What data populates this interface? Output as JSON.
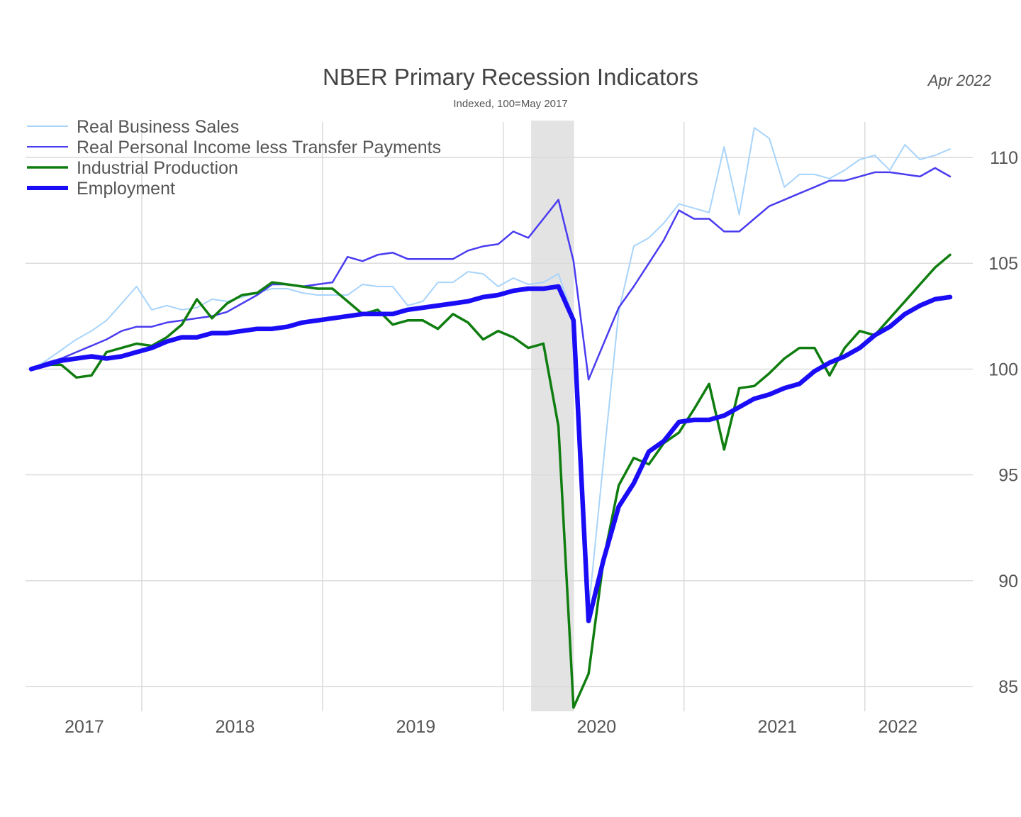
{
  "chart_data": {
    "type": "line",
    "title": "NBER Primary Recession Indicators",
    "subtitle": "Indexed, 100=May 2017",
    "date_note": "Apr 2022",
    "ylim": [
      84,
      112
    ],
    "y_ticks": [
      85,
      90,
      95,
      100,
      105,
      110
    ],
    "y_tick_labels": [
      "85",
      "90",
      "95",
      "100",
      "105",
      "110"
    ],
    "x_tick_labels": [
      "2017",
      "2018",
      "2019",
      "2020",
      "2021",
      "2022"
    ],
    "xlim": [
      "2017-05",
      "2022-04"
    ],
    "x_tick_positions": [
      "2017-09",
      "2018-07",
      "2019-07",
      "2020-07",
      "2021-07",
      "2022-03"
    ],
    "x_grid_years": [
      "2018-01",
      "2019-01",
      "2020-01",
      "2021-01",
      "2022-01"
    ],
    "recession": {
      "start": "2020-02",
      "end": "2020-04"
    },
    "grid": true,
    "legend_position": "top-left",
    "series": [
      {
        "name": "Real Business Sales",
        "color": "#a8d4fb",
        "values": [
          [
            "2017-05",
            100.0
          ],
          [
            "2017-06",
            100.4
          ],
          [
            "2017-07",
            100.9
          ],
          [
            "2017-08",
            101.4
          ],
          [
            "2017-09",
            101.8
          ],
          [
            "2017-10",
            102.3
          ],
          [
            "2017-11",
            103.1
          ],
          [
            "2017-12",
            103.9
          ],
          [
            "2018-01",
            102.8
          ],
          [
            "2018-02",
            103.0
          ],
          [
            "2018-03",
            102.8
          ],
          [
            "2018-04",
            102.9
          ],
          [
            "2018-05",
            103.3
          ],
          [
            "2018-06",
            103.2
          ],
          [
            "2018-07",
            103.4
          ],
          [
            "2018-08",
            103.6
          ],
          [
            "2018-09",
            103.8
          ],
          [
            "2018-10",
            103.8
          ],
          [
            "2018-11",
            103.6
          ],
          [
            "2018-12",
            103.5
          ],
          [
            "2019-01",
            103.5
          ],
          [
            "2019-02",
            103.5
          ],
          [
            "2019-03",
            104.0
          ],
          [
            "2019-04",
            103.9
          ],
          [
            "2019-05",
            103.9
          ],
          [
            "2019-06",
            103.0
          ],
          [
            "2019-07",
            103.2
          ],
          [
            "2019-08",
            104.1
          ],
          [
            "2019-09",
            104.1
          ],
          [
            "2019-10",
            104.6
          ],
          [
            "2019-11",
            104.5
          ],
          [
            "2019-12",
            103.9
          ],
          [
            "2020-01",
            104.3
          ],
          [
            "2020-02",
            104.0
          ],
          [
            "2020-03",
            104.1
          ],
          [
            "2020-04",
            104.5
          ],
          [
            "2020-05",
            102.4
          ],
          [
            "2020-06",
            88.6
          ],
          [
            "2020-07",
            95.7
          ],
          [
            "2020-08",
            102.7
          ],
          [
            "2020-09",
            105.8
          ],
          [
            "2020-10",
            106.2
          ],
          [
            "2020-11",
            106.9
          ],
          [
            "2020-12",
            107.8
          ],
          [
            "2021-01",
            107.6
          ],
          [
            "2021-02",
            107.4
          ],
          [
            "2021-03",
            110.5
          ],
          [
            "2021-04",
            107.3
          ],
          [
            "2021-05",
            111.4
          ],
          [
            "2021-06",
            110.9
          ],
          [
            "2021-07",
            108.6
          ],
          [
            "2021-08",
            109.2
          ],
          [
            "2021-09",
            109.2
          ],
          [
            "2021-10",
            109.0
          ],
          [
            "2021-11",
            109.4
          ],
          [
            "2021-12",
            109.9
          ],
          [
            "2022-01",
            110.1
          ],
          [
            "2022-02",
            109.4
          ],
          [
            "2022-03",
            110.6
          ],
          [
            "2022-04",
            109.9
          ],
          [
            "2022-05",
            110.1
          ],
          [
            "2022-06",
            110.4
          ]
        ]
      },
      {
        "name": "Real Personal Income less Transfer Payments",
        "color": "#4a3cf0",
        "values": [
          [
            "2017-05",
            100.0
          ],
          [
            "2017-06",
            100.3
          ],
          [
            "2017-07",
            100.5
          ],
          [
            "2017-08",
            100.8
          ],
          [
            "2017-09",
            101.1
          ],
          [
            "2017-10",
            101.4
          ],
          [
            "2017-11",
            101.8
          ],
          [
            "2017-12",
            102.0
          ],
          [
            "2018-01",
            102.0
          ],
          [
            "2018-02",
            102.2
          ],
          [
            "2018-03",
            102.3
          ],
          [
            "2018-04",
            102.4
          ],
          [
            "2018-05",
            102.5
          ],
          [
            "2018-06",
            102.7
          ],
          [
            "2018-07",
            103.1
          ],
          [
            "2018-08",
            103.5
          ],
          [
            "2018-09",
            104.0
          ],
          [
            "2018-10",
            104.0
          ],
          [
            "2018-11",
            103.9
          ],
          [
            "2018-12",
            104.0
          ],
          [
            "2019-01",
            104.1
          ],
          [
            "2019-02",
            105.3
          ],
          [
            "2019-03",
            105.1
          ],
          [
            "2019-04",
            105.4
          ],
          [
            "2019-05",
            105.5
          ],
          [
            "2019-06",
            105.2
          ],
          [
            "2019-07",
            105.2
          ],
          [
            "2019-08",
            105.2
          ],
          [
            "2019-09",
            105.2
          ],
          [
            "2019-10",
            105.6
          ],
          [
            "2019-11",
            105.8
          ],
          [
            "2019-12",
            105.9
          ],
          [
            "2020-01",
            106.5
          ],
          [
            "2020-02",
            106.2
          ],
          [
            "2020-03",
            107.1
          ],
          [
            "2020-04",
            108.0
          ],
          [
            "2020-05",
            105.1
          ],
          [
            "2020-06",
            99.5
          ],
          [
            "2020-07",
            101.2
          ],
          [
            "2020-08",
            102.9
          ],
          [
            "2020-09",
            103.9
          ],
          [
            "2020-10",
            105.0
          ],
          [
            "2020-11",
            106.1
          ],
          [
            "2020-12",
            107.5
          ],
          [
            "2021-01",
            107.1
          ],
          [
            "2021-02",
            107.1
          ],
          [
            "2021-03",
            106.5
          ],
          [
            "2021-04",
            106.5
          ],
          [
            "2021-05",
            107.1
          ],
          [
            "2021-06",
            107.7
          ],
          [
            "2021-07",
            108.0
          ],
          [
            "2021-08",
            108.3
          ],
          [
            "2021-09",
            108.6
          ],
          [
            "2021-10",
            108.9
          ],
          [
            "2021-11",
            108.9
          ],
          [
            "2021-12",
            109.1
          ],
          [
            "2022-01",
            109.3
          ],
          [
            "2022-02",
            109.3
          ],
          [
            "2022-03",
            109.2
          ],
          [
            "2022-04",
            109.1
          ],
          [
            "2022-05",
            109.5
          ],
          [
            "2022-06",
            109.1
          ]
        ]
      },
      {
        "name": "Industrial Production",
        "color": "#0f7d0f",
        "values": [
          [
            "2017-05",
            100.0
          ],
          [
            "2017-06",
            100.2
          ],
          [
            "2017-07",
            100.2
          ],
          [
            "2017-08",
            99.6
          ],
          [
            "2017-09",
            99.7
          ],
          [
            "2017-10",
            100.8
          ],
          [
            "2017-11",
            101.0
          ],
          [
            "2017-12",
            101.2
          ],
          [
            "2018-01",
            101.1
          ],
          [
            "2018-02",
            101.5
          ],
          [
            "2018-03",
            102.1
          ],
          [
            "2018-04",
            103.3
          ],
          [
            "2018-05",
            102.4
          ],
          [
            "2018-06",
            103.1
          ],
          [
            "2018-07",
            103.5
          ],
          [
            "2018-08",
            103.6
          ],
          [
            "2018-09",
            104.1
          ],
          [
            "2018-10",
            104.0
          ],
          [
            "2018-11",
            103.9
          ],
          [
            "2018-12",
            103.8
          ],
          [
            "2019-01",
            103.8
          ],
          [
            "2019-02",
            103.2
          ],
          [
            "2019-03",
            102.6
          ],
          [
            "2019-04",
            102.8
          ],
          [
            "2019-05",
            102.1
          ],
          [
            "2019-06",
            102.3
          ],
          [
            "2019-07",
            102.3
          ],
          [
            "2019-08",
            101.9
          ],
          [
            "2019-09",
            102.6
          ],
          [
            "2019-10",
            102.2
          ],
          [
            "2019-11",
            101.4
          ],
          [
            "2019-12",
            101.8
          ],
          [
            "2020-01",
            101.5
          ],
          [
            "2020-02",
            101.0
          ],
          [
            "2020-03",
            101.2
          ],
          [
            "2020-04",
            97.3
          ],
          [
            "2020-05",
            84.0
          ],
          [
            "2020-06",
            85.6
          ],
          [
            "2020-07",
            91.0
          ],
          [
            "2020-08",
            94.5
          ],
          [
            "2020-09",
            95.8
          ],
          [
            "2020-10",
            95.5
          ],
          [
            "2020-11",
            96.5
          ],
          [
            "2020-12",
            97.0
          ],
          [
            "2021-01",
            98.1
          ],
          [
            "2021-02",
            99.3
          ],
          [
            "2021-03",
            96.2
          ],
          [
            "2021-04",
            99.1
          ],
          [
            "2021-05",
            99.2
          ],
          [
            "2021-06",
            99.8
          ],
          [
            "2021-07",
            100.5
          ],
          [
            "2021-08",
            101.0
          ],
          [
            "2021-09",
            101.0
          ],
          [
            "2021-10",
            99.7
          ],
          [
            "2021-11",
            101.0
          ],
          [
            "2021-12",
            101.8
          ],
          [
            "2022-01",
            101.6
          ],
          [
            "2022-02",
            102.4
          ],
          [
            "2022-03",
            103.2
          ],
          [
            "2022-04",
            104.0
          ],
          [
            "2022-05",
            104.8
          ],
          [
            "2022-06",
            105.4
          ]
        ]
      },
      {
        "name": "Employment",
        "color": "#1a0df5",
        "values": [
          [
            "2017-05",
            100.0
          ],
          [
            "2017-06",
            100.2
          ],
          [
            "2017-07",
            100.4
          ],
          [
            "2017-08",
            100.5
          ],
          [
            "2017-09",
            100.6
          ],
          [
            "2017-10",
            100.5
          ],
          [
            "2017-11",
            100.6
          ],
          [
            "2017-12",
            100.8
          ],
          [
            "2018-01",
            101.0
          ],
          [
            "2018-02",
            101.3
          ],
          [
            "2018-03",
            101.5
          ],
          [
            "2018-04",
            101.5
          ],
          [
            "2018-05",
            101.7
          ],
          [
            "2018-06",
            101.7
          ],
          [
            "2018-07",
            101.8
          ],
          [
            "2018-08",
            101.9
          ],
          [
            "2018-09",
            101.9
          ],
          [
            "2018-10",
            102.0
          ],
          [
            "2018-11",
            102.2
          ],
          [
            "2018-12",
            102.3
          ],
          [
            "2019-01",
            102.4
          ],
          [
            "2019-02",
            102.5
          ],
          [
            "2019-03",
            102.6
          ],
          [
            "2019-04",
            102.6
          ],
          [
            "2019-05",
            102.6
          ],
          [
            "2019-06",
            102.8
          ],
          [
            "2019-07",
            102.9
          ],
          [
            "2019-08",
            103.0
          ],
          [
            "2019-09",
            103.1
          ],
          [
            "2019-10",
            103.2
          ],
          [
            "2019-11",
            103.4
          ],
          [
            "2019-12",
            103.5
          ],
          [
            "2020-01",
            103.7
          ],
          [
            "2020-02",
            103.8
          ],
          [
            "2020-03",
            103.8
          ],
          [
            "2020-04",
            103.9
          ],
          [
            "2020-05",
            102.3
          ],
          [
            "2020-06",
            88.1
          ],
          [
            "2020-07",
            91.0
          ],
          [
            "2020-08",
            93.5
          ],
          [
            "2020-09",
            94.6
          ],
          [
            "2020-10",
            96.1
          ],
          [
            "2020-11",
            96.6
          ],
          [
            "2020-12",
            97.5
          ],
          [
            "2021-01",
            97.6
          ],
          [
            "2021-02",
            97.6
          ],
          [
            "2021-03",
            97.8
          ],
          [
            "2021-04",
            98.2
          ],
          [
            "2021-05",
            98.6
          ],
          [
            "2021-06",
            98.8
          ],
          [
            "2021-07",
            99.1
          ],
          [
            "2021-08",
            99.3
          ],
          [
            "2021-09",
            99.9
          ],
          [
            "2021-10",
            100.3
          ],
          [
            "2021-11",
            100.6
          ],
          [
            "2021-12",
            101.0
          ],
          [
            "2022-01",
            101.6
          ],
          [
            "2022-02",
            102.0
          ],
          [
            "2022-03",
            102.6
          ],
          [
            "2022-04",
            103.0
          ],
          [
            "2022-05",
            103.3
          ],
          [
            "2022-06",
            103.4
          ]
        ]
      }
    ]
  }
}
